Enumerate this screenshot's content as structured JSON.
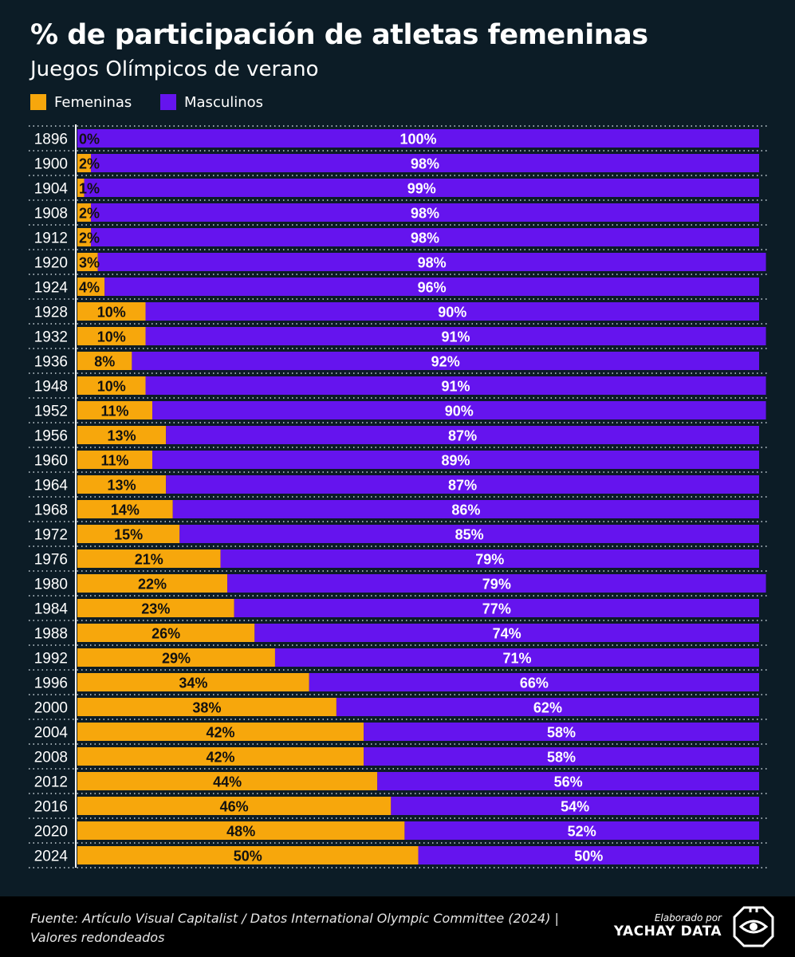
{
  "title": "% de participación de atletas femeninas",
  "subtitle": "Juegos Olímpicos de verano",
  "legend": [
    {
      "label": "Femeninas",
      "color": "#f7a70c"
    },
    {
      "label": "Masculinos",
      "color": "#6514ee"
    }
  ],
  "footer": {
    "source_line1": "Fuente: Artículo Visual Capitalist / Datos International Olympic Committee (2024) |",
    "source_line2": "Valores redondeados",
    "credit_small": "Elaborado por",
    "credit_brand": "YACHAY DATA",
    "logo_icon": "eye-icon"
  },
  "chart_data": {
    "type": "bar",
    "orientation": "horizontal",
    "stacked": true,
    "categories": [
      "1896",
      "1900",
      "1904",
      "1908",
      "1912",
      "1920",
      "1924",
      "1928",
      "1932",
      "1936",
      "1948",
      "1952",
      "1956",
      "1960",
      "1964",
      "1968",
      "1972",
      "1976",
      "1980",
      "1984",
      "1988",
      "1992",
      "1996",
      "2000",
      "2004",
      "2008",
      "2012",
      "2016",
      "2020",
      "2024"
    ],
    "series": [
      {
        "name": "Femeninas",
        "color": "#f7a70c",
        "label_color": "#111111",
        "values": [
          0,
          2,
          1,
          2,
          2,
          3,
          4,
          10,
          10,
          8,
          10,
          11,
          13,
          11,
          13,
          14,
          15,
          21,
          22,
          23,
          26,
          29,
          34,
          38,
          42,
          42,
          44,
          46,
          48,
          50
        ],
        "labels": [
          "0%",
          "2%",
          "1%",
          "2%",
          "2%",
          "3%",
          "4%",
          "10%",
          "10%",
          "8%",
          "10%",
          "11%",
          "13%",
          "11%",
          "13%",
          "14%",
          "15%",
          "21%",
          "22%",
          "23%",
          "26%",
          "29%",
          "34%",
          "38%",
          "42%",
          "42%",
          "44%",
          "46%",
          "48%",
          "50%"
        ]
      },
      {
        "name": "Masculinos",
        "color": "#6514ee",
        "label_color": "#ffffff",
        "values": [
          100,
          98,
          99,
          98,
          98,
          98,
          96,
          90,
          91,
          92,
          91,
          90,
          87,
          89,
          87,
          86,
          85,
          79,
          79,
          77,
          74,
          71,
          66,
          62,
          58,
          58,
          56,
          54,
          52,
          50
        ],
        "labels": [
          "100%",
          "98%",
          "99%",
          "98%",
          "98%",
          "98%",
          "96%",
          "90%",
          "91%",
          "92%",
          "91%",
          "90%",
          "87%",
          "89%",
          "87%",
          "86%",
          "85%",
          "79%",
          "79%",
          "77%",
          "74%",
          "71%",
          "66%",
          "62%",
          "58%",
          "58%",
          "56%",
          "54%",
          "52%",
          "50%"
        ]
      }
    ],
    "xlim": [
      0,
      100
    ],
    "xlabel": "",
    "ylabel": "",
    "grid": "dotted row separators"
  }
}
